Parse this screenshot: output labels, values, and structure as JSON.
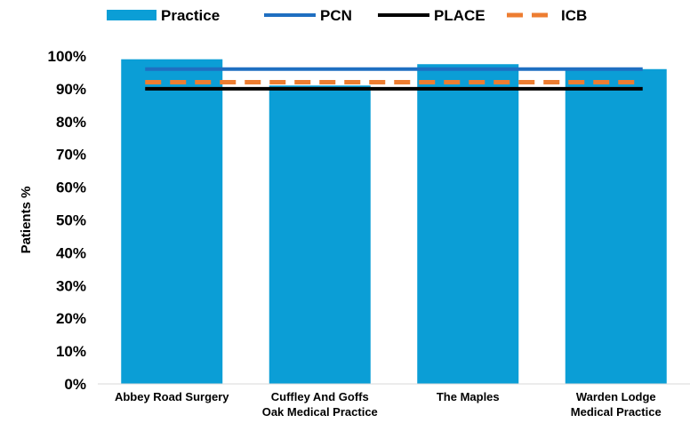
{
  "chart_data": {
    "type": "bar",
    "categories": [
      [
        "Abbey Road Surgery"
      ],
      [
        "Cuffley And Goffs",
        "Oak Medical Practice"
      ],
      [
        "The Maples"
      ],
      [
        "Warden Lodge",
        "Medical Practice"
      ]
    ],
    "series": [
      {
        "name": "Practice",
        "kind": "bar",
        "values": [
          99,
          91,
          97.5,
          96
        ],
        "color": "#0b9ed6"
      },
      {
        "name": "PCN",
        "kind": "line",
        "values": [
          96,
          96,
          96,
          96
        ],
        "color": "#1f6fc1"
      },
      {
        "name": "PLACE",
        "kind": "line",
        "values": [
          90,
          90,
          90,
          90
        ],
        "color": "#000000"
      },
      {
        "name": "ICB",
        "kind": "dashed-line",
        "values": [
          92,
          92,
          92,
          92
        ],
        "color": "#ed7d31"
      }
    ],
    "ylabel": "Patients %",
    "ylim": [
      0,
      100
    ],
    "yticks": [
      "0%",
      "10%",
      "20%",
      "30%",
      "40%",
      "50%",
      "60%",
      "70%",
      "80%",
      "90%",
      "100%"
    ],
    "grid": false,
    "legend": "top"
  }
}
